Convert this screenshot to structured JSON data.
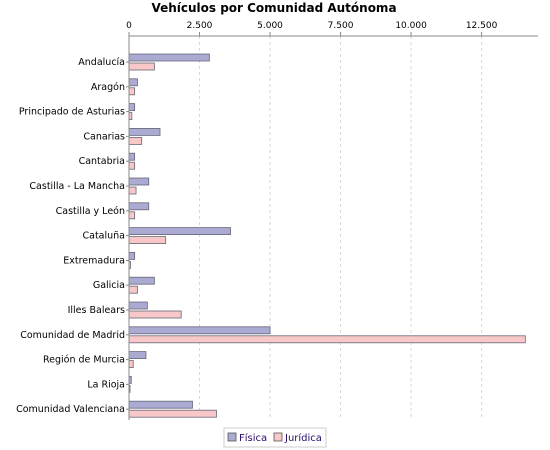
{
  "chart_data": {
    "type": "bar",
    "orientation": "horizontal",
    "title": "Vehículos por Comunidad Autónoma",
    "xlabel": "",
    "ylabel": "",
    "xlim": [
      0,
      14500
    ],
    "x_ticks": [
      0,
      2500,
      5000,
      7500,
      10000,
      12500
    ],
    "x_tick_labels": [
      "0",
      "2.500",
      "5.000",
      "7.500",
      "10.000",
      "12.500"
    ],
    "x_axis_position": "top",
    "grid": true,
    "legend_position": "bottom-center",
    "categories": [
      "Andalucía",
      "Aragón",
      "Principado de Asturias",
      "Canarias",
      "Cantabria",
      "Castilla - La Mancha",
      "Castilla y León",
      "Cataluña",
      "Extremadura",
      "Galicia",
      "Illes Balears",
      "Comunidad de Madrid",
      "Región de Murcia",
      "La Rioja",
      "Comunidad Valenciana"
    ],
    "series": [
      {
        "name": "Física",
        "color": "#aaaad2",
        "values": [
          2850,
          300,
          200,
          1100,
          200,
          700,
          700,
          3600,
          200,
          900,
          650,
          5000,
          600,
          80,
          2250
        ]
      },
      {
        "name": "Jurídica",
        "color": "#f8c8c8",
        "values": [
          900,
          200,
          100,
          450,
          200,
          250,
          200,
          1300,
          50,
          300,
          1850,
          14050,
          150,
          30,
          3100
        ]
      }
    ]
  }
}
